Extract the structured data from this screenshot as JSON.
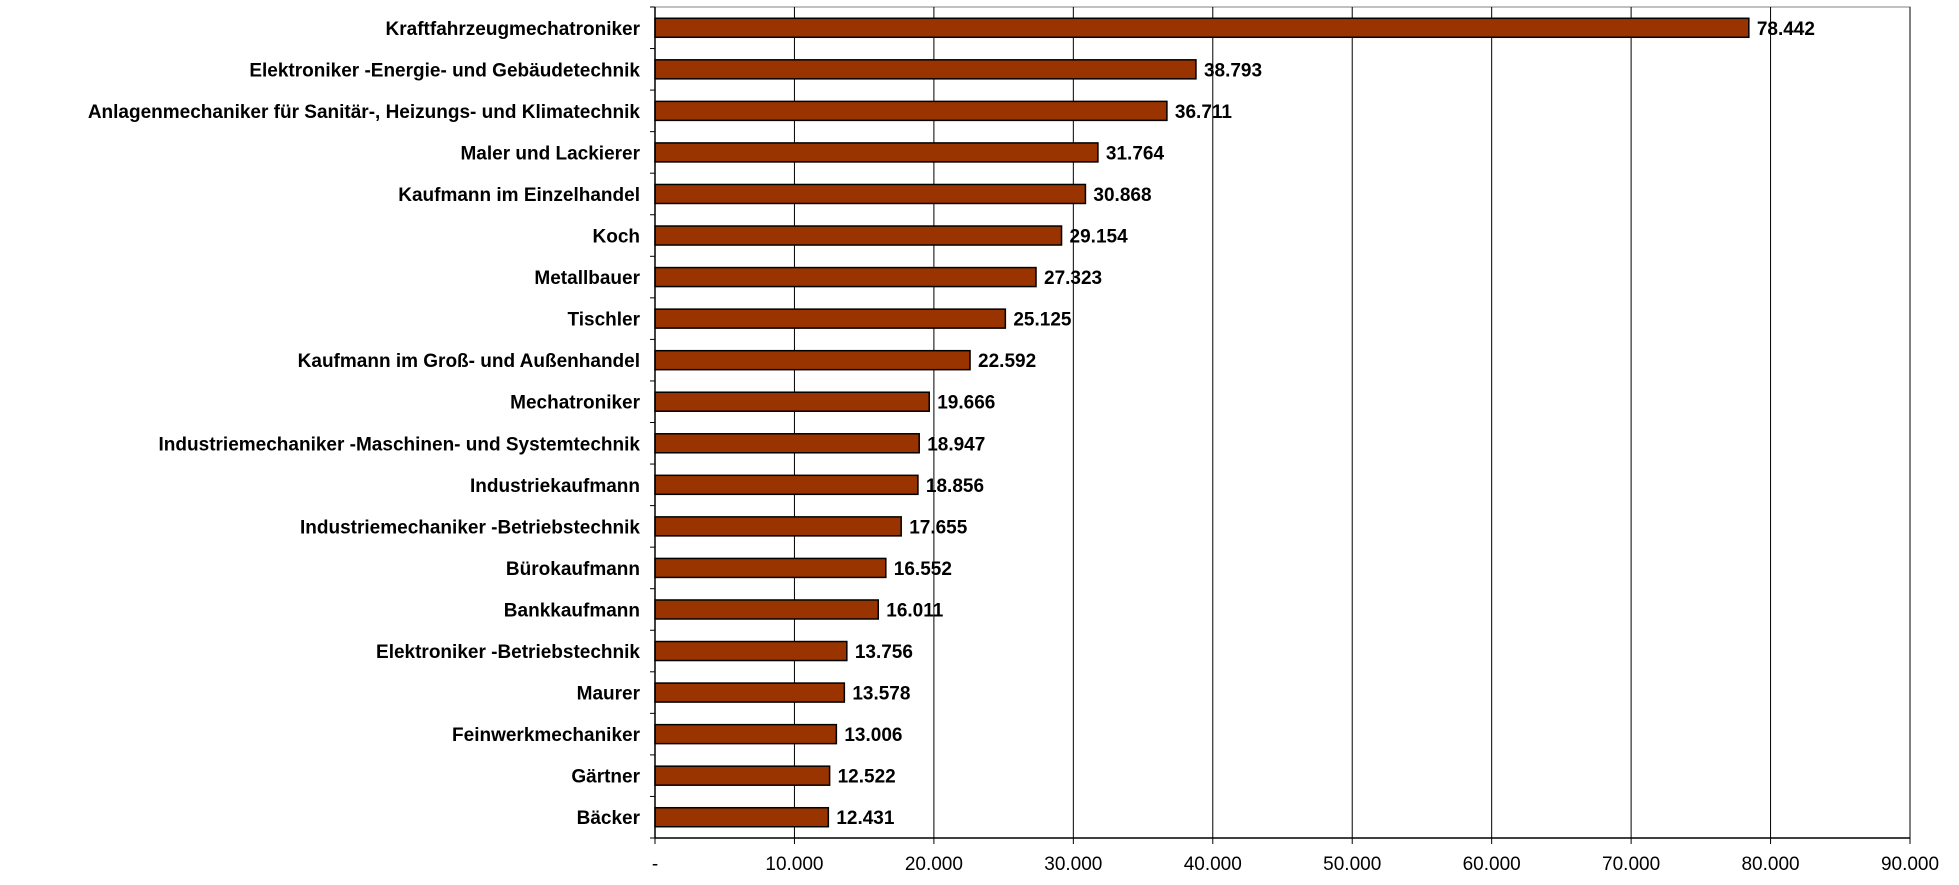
{
  "chart_data": {
    "type": "bar",
    "orientation": "horizontal",
    "categories": [
      "Kraftfahrzeugmechatroniker",
      "Elektroniker -Energie- und Gebäudetechnik",
      "Anlagenmechaniker für Sanitär-, Heizungs- und Klimatechnik",
      "Maler und Lackierer",
      "Kaufmann im Einzelhandel",
      "Koch",
      "Metallbauer",
      "Tischler",
      "Kaufmann im Groß- und Außenhandel",
      "Mechatroniker",
      "Industriemechaniker -Maschinen- und Systemtechnik",
      "Industriekaufmann",
      "Industriemechaniker -Betriebstechnik",
      "Bürokaufmann",
      "Bankkaufmann",
      "Elektroniker -Betriebstechnik",
      "Maurer",
      "Feinwerkmechaniker",
      "Gärtner",
      "Bäcker"
    ],
    "values": [
      78442,
      38793,
      36711,
      31764,
      30868,
      29154,
      27323,
      25125,
      22592,
      19666,
      18947,
      18856,
      17655,
      16552,
      16011,
      13756,
      13578,
      13006,
      12522,
      12431
    ],
    "value_labels": [
      "78.442",
      "38.793",
      "36.711",
      "31.764",
      "30.868",
      "29.154",
      "27.323",
      "25.125",
      "22.592",
      "19.666",
      "18.947",
      "18.856",
      "17.655",
      "16.552",
      "16.011",
      "13.756",
      "13.578",
      "13.006",
      "12.522",
      "12.431"
    ],
    "xlim": [
      0,
      90000
    ],
    "x_ticks": [
      0,
      10000,
      20000,
      30000,
      40000,
      50000,
      60000,
      70000,
      80000,
      90000
    ],
    "x_tick_labels": [
      "-",
      "10.000",
      "20.000",
      "30.000",
      "40.000",
      "50.000",
      "60.000",
      "70.000",
      "80.000",
      "90.000"
    ],
    "title": "",
    "xlabel": "",
    "ylabel": "",
    "grid": "vertical",
    "legend": "none",
    "colors": {
      "bar_fill": "#993300",
      "bar_stroke": "#000000",
      "grid": "#000000",
      "frame": "#808080"
    }
  }
}
